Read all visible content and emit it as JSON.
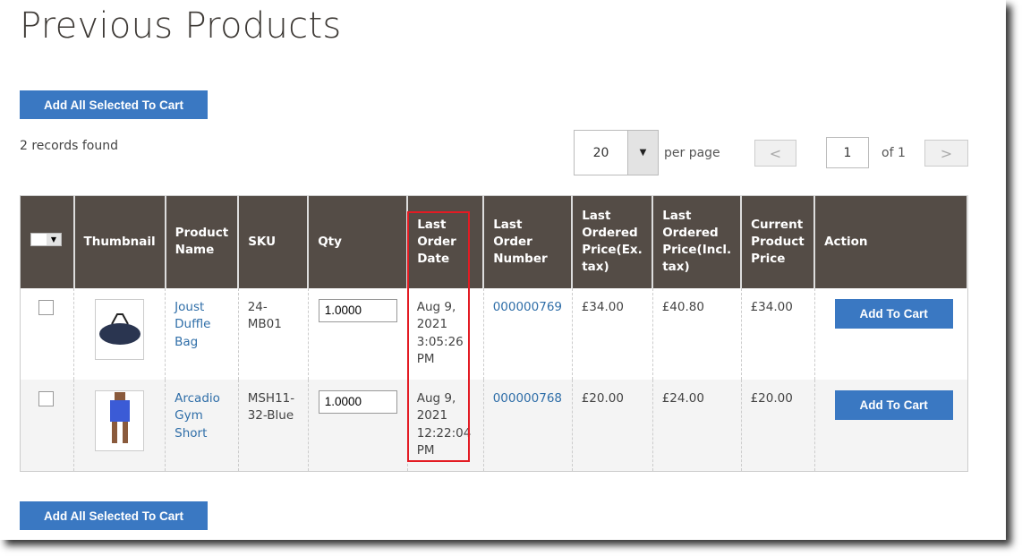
{
  "title": "Previous Products",
  "add_all_label": "Add All Selected To Cart",
  "records": "2 records found",
  "limiter": {
    "value": "20",
    "per_page": "per page"
  },
  "pager": {
    "page": "1",
    "of": "of 1"
  },
  "columns": [
    "Thumbnail",
    "Product Name",
    "SKU",
    "Qty",
    "Last Order Date",
    "Last Order Number",
    "Last Ordered Price(Ex. tax)",
    "Last Ordered Price(Incl. tax)",
    "Current Product Price",
    "Action"
  ],
  "rows": [
    {
      "name": "Joust Duffle Bag",
      "sku": "24-MB01",
      "qty": "1.0000",
      "date": "Aug 9, 2021 3:05:26 PM",
      "order": "000000769",
      "price_ex": "£34.00",
      "price_incl": "£40.80",
      "current": "£34.00",
      "action": "Add To Cart"
    },
    {
      "name": "Arcadio Gym Short",
      "sku": "MSH11-32-Blue",
      "qty": "1.0000",
      "date": "Aug 9, 2021 12:22:04 PM",
      "order": "000000768",
      "price_ex": "£20.00",
      "price_incl": "£24.00",
      "current": "£20.00",
      "action": "Add To Cart"
    }
  ],
  "colors": {
    "header_bg": "#544c46",
    "button": "#3a78c2",
    "link": "#2f6ea8",
    "highlight": "#e31b23"
  }
}
